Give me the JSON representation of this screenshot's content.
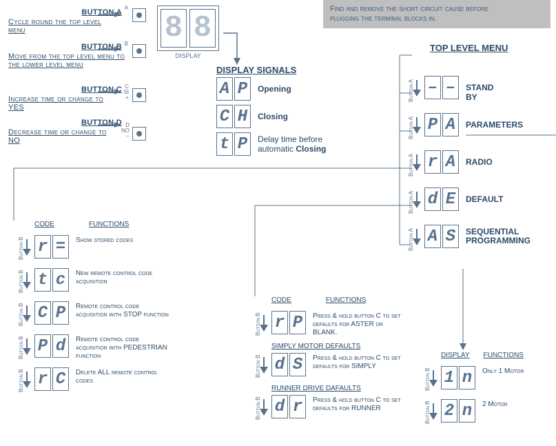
{
  "note": {
    "line1": "Find and remove the short circuit cause before",
    "line2": "plugging the terminal blocks in."
  },
  "buttons": {
    "a": {
      "title": "BUTTON A",
      "desc": "Cycle round the top level menu",
      "pin": "A"
    },
    "b": {
      "title": "BUTTON B",
      "desc": "Move from the top level menu to the lower level menu",
      "pin": "B"
    },
    "c": {
      "title": "BUTTON C",
      "desc": "Increase time or change to YES",
      "pin1": "C",
      "pin2": "SI",
      "pin3": "+"
    },
    "d": {
      "title": "BUTTON D",
      "desc": "Decrease time or change to NO",
      "pin1": "D",
      "pin2": "NO",
      "pin3": "−"
    }
  },
  "display": {
    "label": "DISPLAY",
    "signals_heading": "DISPLAY SIGNALS",
    "items": [
      {
        "code": [
          "A",
          "P"
        ],
        "label": "Opening"
      },
      {
        "code": [
          "C",
          "H"
        ],
        "label": "Closing"
      },
      {
        "code": [
          "t",
          "P"
        ],
        "label_pre": "Delay time before automatic ",
        "label_bold": "Closing"
      }
    ]
  },
  "toplevel": {
    "heading": "TOP LEVEL MENU",
    "btn_label": "Button A",
    "items": [
      {
        "code": [
          "–",
          "–"
        ],
        "label": "STAND BY"
      },
      {
        "code": [
          "P",
          "A"
        ],
        "label": "PARAMETERS"
      },
      {
        "code": [
          "r",
          "A"
        ],
        "label": "RADIO"
      },
      {
        "code": [
          "d",
          "E"
        ],
        "label": "DEFAULT"
      },
      {
        "code": [
          "A",
          "S"
        ],
        "label": "SEQUENTIAL PROGRAMMING"
      }
    ]
  },
  "radio_sub": {
    "btn_label": "Button B",
    "head_code": "CODE",
    "head_func": "FUNCTIONS",
    "items": [
      {
        "code": [
          "r",
          "="
        ],
        "desc": "Show stored codes"
      },
      {
        "code": [
          "t",
          "c"
        ],
        "desc": "New remote control code acquisition"
      },
      {
        "code": [
          "C",
          "P"
        ],
        "desc": "Remote control code acquisition with STOP function"
      },
      {
        "code": [
          "P",
          "d"
        ],
        "desc": "Remote control code acquisition with PEDESTRIAN function"
      },
      {
        "code": [
          "r",
          "C"
        ],
        "desc": "Delete ALL remote control codes"
      }
    ]
  },
  "default_sub": {
    "btn_label": "Button B",
    "head_code": "CODE",
    "head_func": "FUNCTIONS",
    "items": [
      {
        "subhead": "",
        "code": [
          "r",
          "P"
        ],
        "desc": "Press & hold button C to set defaults for ASTER or BLANK."
      },
      {
        "subhead": "SIMPLY MOTOR DEFAULTS",
        "code": [
          "d",
          "S"
        ],
        "desc": "Press & hold button C to set defaults for SIMPLY"
      },
      {
        "subhead": "RUNNER DRIVE DAFAULTS",
        "code": [
          "d",
          "r"
        ],
        "desc": "Press & hold button C to set defaults for RUNNER"
      }
    ]
  },
  "seq_sub": {
    "btn_label": "Button B",
    "head_display": "DISPLAY",
    "head_func": "FUNCTIONS",
    "items": [
      {
        "code": [
          "1",
          "n"
        ],
        "desc": "Only 1 Motor"
      },
      {
        "code": [
          "2",
          "n"
        ],
        "desc": "2 Motor"
      }
    ]
  },
  "colors": {
    "stroke": "#58728c",
    "text": "#2a4a6a",
    "note_bg": "#bfbfbf"
  }
}
